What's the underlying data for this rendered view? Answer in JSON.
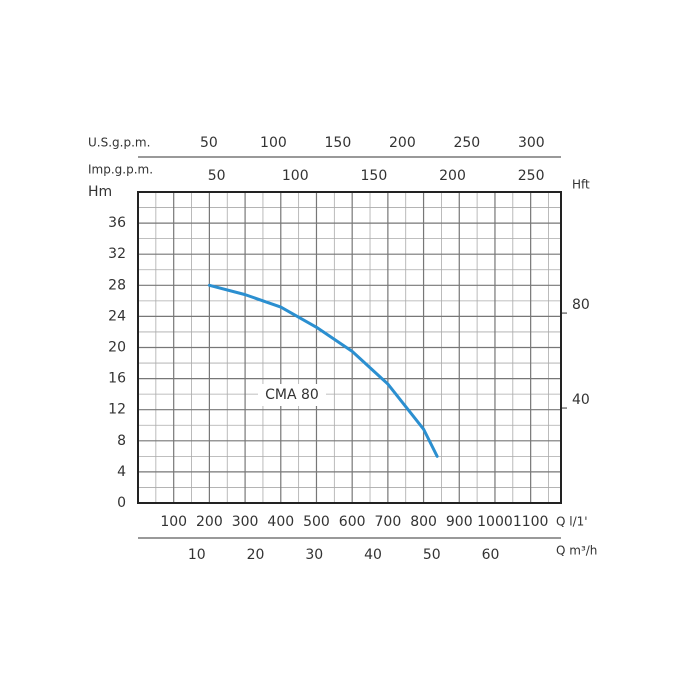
{
  "chart_data": {
    "type": "line",
    "ylabel": "Hm",
    "ylim": [
      0,
      40
    ],
    "yticks": [
      0,
      4,
      8,
      12,
      16,
      20,
      24,
      28,
      32,
      36
    ],
    "y_minor_ticks": [
      2,
      6,
      10,
      14,
      18,
      22,
      26,
      30,
      34,
      38
    ],
    "y2label": "Hft",
    "y2lim": [
      0,
      131
    ],
    "y2ticks": [
      40,
      80
    ],
    "xlabel": "Q l/1'",
    "xlim": [
      0,
      1185
    ],
    "xticks": [
      100,
      200,
      300,
      400,
      500,
      600,
      700,
      800,
      900,
      1000,
      1100
    ],
    "x_minor_ticks": [
      50,
      150,
      250,
      350,
      450,
      550,
      650,
      750,
      850,
      950,
      1050,
      1150
    ],
    "grid": true,
    "secondary_x_axes": [
      {
        "label": "U.S.g.p.m.",
        "lim": [
          -5,
          323
        ],
        "ticks": [
          50,
          100,
          150,
          200,
          250,
          300
        ],
        "side": "top"
      },
      {
        "label": "Imp.g.p.m.",
        "lim": [
          0,
          269
        ],
        "ticks": [
          50,
          100,
          150,
          200,
          250
        ],
        "side": "top"
      },
      {
        "label": "Q m³/h",
        "lim": [
          0,
          72
        ],
        "ticks": [
          10,
          20,
          30,
          40,
          50,
          60
        ],
        "side": "bottom"
      }
    ],
    "series": [
      {
        "name": "CMA 80",
        "color": "#2b8fd0",
        "x": [
          200,
          300,
          400,
          500,
          600,
          700,
          800,
          838
        ],
        "values": [
          28,
          26.8,
          25.2,
          22.6,
          19.5,
          15.3,
          9.5,
          6
        ]
      }
    ]
  }
}
